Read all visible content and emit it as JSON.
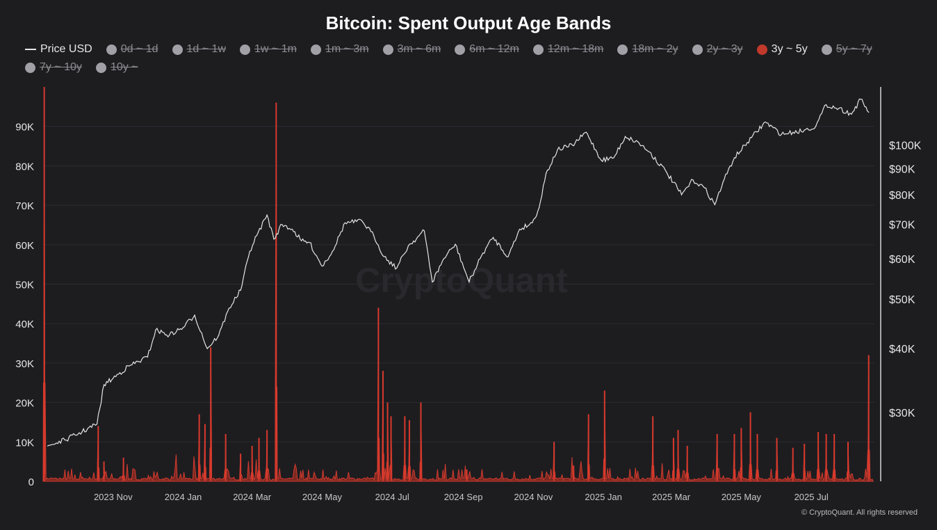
{
  "chart_data": {
    "type": "line",
    "title": "Bitcoin: Spent Output Age Bands",
    "watermark": "CryptoQuant",
    "copyright": "© CryptoQuant. All rights reserved",
    "legend_placement": "top",
    "grid": true,
    "legend": [
      {
        "label": "Price USD",
        "marker": "line",
        "color": "#e8e8e8",
        "active": true
      },
      {
        "label": "0d ~ 1d",
        "marker": "dot",
        "color": "#a0a0a6",
        "active": false
      },
      {
        "label": "1d ~ 1w",
        "marker": "dot",
        "color": "#a0a0a6",
        "active": false
      },
      {
        "label": "1w ~ 1m",
        "marker": "dot",
        "color": "#a0a0a6",
        "active": false
      },
      {
        "label": "1m ~ 3m",
        "marker": "dot",
        "color": "#a0a0a6",
        "active": false
      },
      {
        "label": "3m ~ 6m",
        "marker": "dot",
        "color": "#a0a0a6",
        "active": false
      },
      {
        "label": "6m ~ 12m",
        "marker": "dot",
        "color": "#a0a0a6",
        "active": false
      },
      {
        "label": "12m ~ 18m",
        "marker": "dot",
        "color": "#a0a0a6",
        "active": false
      },
      {
        "label": "18m ~ 2y",
        "marker": "dot",
        "color": "#a0a0a6",
        "active": false
      },
      {
        "label": "2y ~ 3y",
        "marker": "dot",
        "color": "#a0a0a6",
        "active": false
      },
      {
        "label": "3y ~ 5y",
        "marker": "dot",
        "color": "#c0392b",
        "active": true
      },
      {
        "label": "5y ~ 7y",
        "marker": "dot",
        "color": "#a0a0a6",
        "active": false
      },
      {
        "label": "7y ~ 10y",
        "marker": "dot",
        "color": "#a0a0a6",
        "active": false
      },
      {
        "label": "10y ~",
        "marker": "dot",
        "color": "#a0a0a6",
        "active": false
      }
    ],
    "x_tick_labels": [
      "2023 Nov",
      "2024 Jan",
      "2024 Mar",
      "2024 May",
      "2024 Jul",
      "2024 Sep",
      "2024 Nov",
      "2025 Jan",
      "2025 Mar",
      "2025 May",
      "2025 Jul"
    ],
    "x_ticks": [
      "2023-11-01",
      "2024-01-01",
      "2024-03-01",
      "2024-05-01",
      "2024-07-01",
      "2024-09-01",
      "2024-11-01",
      "2025-01-01",
      "2025-03-01",
      "2025-05-01",
      "2025-07-01"
    ],
    "xlim": [
      "2023-09-01",
      "2025-08-25"
    ],
    "left_axis": {
      "ticks": [
        0,
        10000,
        20000,
        30000,
        40000,
        50000,
        60000,
        70000,
        80000,
        90000
      ],
      "tick_labels": [
        "0",
        "10K",
        "20K",
        "30K",
        "40K",
        "50K",
        "60K",
        "70K",
        "80K",
        "90K"
      ],
      "ylim": [
        0,
        100000
      ],
      "scale": "linear"
    },
    "right_axis": {
      "ticks": [
        30000,
        40000,
        50000,
        60000,
        70000,
        80000,
        90000,
        100000
      ],
      "tick_labels": [
        "$30K",
        "$40K",
        "$50K",
        "$60K",
        "$70K",
        "$80K",
        "$90K",
        "$100K"
      ],
      "ylim": [
        22000,
        130000
      ],
      "scale": "log"
    },
    "series": [
      {
        "name": "Price USD",
        "type": "line",
        "color": "#e8e8e8",
        "axis": "right",
        "x": [
          "2023-09-05",
          "2023-09-20",
          "2023-10-05",
          "2023-10-18",
          "2023-10-24",
          "2023-11-01",
          "2023-11-15",
          "2023-12-01",
          "2023-12-08",
          "2023-12-20",
          "2024-01-01",
          "2024-01-11",
          "2024-01-22",
          "2024-02-01",
          "2024-02-10",
          "2024-02-20",
          "2024-02-28",
          "2024-03-05",
          "2024-03-14",
          "2024-03-20",
          "2024-03-27",
          "2024-04-05",
          "2024-04-13",
          "2024-04-20",
          "2024-05-01",
          "2024-05-10",
          "2024-05-21",
          "2024-06-05",
          "2024-06-15",
          "2024-06-24",
          "2024-07-05",
          "2024-07-15",
          "2024-07-29",
          "2024-08-05",
          "2024-08-15",
          "2024-08-25",
          "2024-09-06",
          "2024-09-18",
          "2024-09-27",
          "2024-10-10",
          "2024-10-20",
          "2024-10-31",
          "2024-11-06",
          "2024-11-12",
          "2024-11-22",
          "2024-12-05",
          "2024-12-17",
          "2024-12-30",
          "2025-01-10",
          "2025-01-20",
          "2025-02-01",
          "2025-02-10",
          "2025-02-25",
          "2025-03-10",
          "2025-03-20",
          "2025-03-30",
          "2025-04-08",
          "2025-04-15",
          "2025-04-25",
          "2025-05-10",
          "2025-05-22",
          "2025-06-05",
          "2025-06-15",
          "2025-06-25",
          "2025-07-05",
          "2025-07-14",
          "2025-07-25",
          "2025-08-05",
          "2025-08-13",
          "2025-08-20"
        ],
        "values": [
          25800,
          26500,
          27500,
          28500,
          34000,
          35000,
          37000,
          38500,
          43500,
          42500,
          44000,
          46500,
          40000,
          42500,
          48000,
          52000,
          62000,
          66500,
          73000,
          65500,
          70000,
          68500,
          65000,
          64500,
          58000,
          62000,
          70500,
          71000,
          66500,
          60500,
          57500,
          63500,
          68000,
          54000,
          60000,
          64000,
          54000,
          61500,
          66000,
          60500,
          68500,
          70500,
          75500,
          88000,
          98000,
          100000,
          106000,
          93500,
          94500,
          104000,
          101000,
          97000,
          88500,
          80000,
          85500,
          82500,
          76500,
          84500,
          94500,
          103500,
          111000,
          105000,
          106000,
          107000,
          109000,
          120000,
          118000,
          115000,
          123000,
          116000
        ]
      },
      {
        "name": "3y ~ 5y",
        "type": "area",
        "color": "#c0392b",
        "axis": "left",
        "x": [
          "2023-09-02",
          "2023-10-19",
          "2023-10-24",
          "2023-11-10",
          "2024-01-15",
          "2024-01-20",
          "2024-01-25",
          "2024-02-07",
          "2024-02-20",
          "2024-03-01",
          "2024-03-07",
          "2024-03-14",
          "2024-03-22",
          "2024-06-19",
          "2024-06-23",
          "2024-06-27",
          "2024-06-30",
          "2024-07-12",
          "2024-07-16",
          "2024-07-26",
          "2024-09-04",
          "2024-11-19",
          "2024-12-06",
          "2024-12-19",
          "2025-01-02",
          "2025-02-13",
          "2025-03-03",
          "2025-03-07",
          "2025-03-15",
          "2025-04-10",
          "2025-04-25",
          "2025-05-01",
          "2025-05-09",
          "2025-05-15",
          "2025-06-01",
          "2025-06-15",
          "2025-06-25",
          "2025-07-07",
          "2025-07-14",
          "2025-07-21",
          "2025-08-02",
          "2025-08-20"
        ],
        "values": [
          100000,
          14000,
          5000,
          6000,
          17000,
          14500,
          34000,
          12000,
          7000,
          9000,
          11000,
          13000,
          96000,
          44000,
          28000,
          20000,
          16500,
          16500,
          15500,
          20000,
          3000,
          10000,
          4000,
          17000,
          23000,
          16500,
          11000,
          13000,
          9000,
          12000,
          12000,
          13500,
          17500,
          12000,
          11000,
          8500,
          9500,
          12500,
          12000,
          12000,
          10000,
          32000
        ]
      }
    ]
  }
}
